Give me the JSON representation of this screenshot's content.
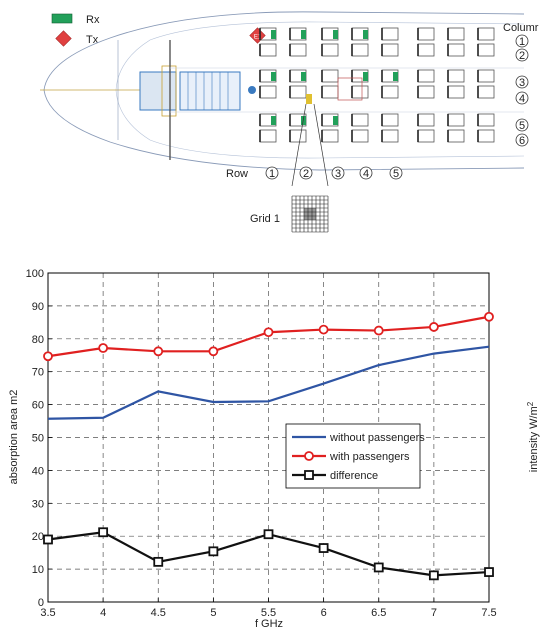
{
  "diagram": {
    "legend": [
      {
        "label": "Rx",
        "color": "#22a05a"
      },
      {
        "label": "Tx",
        "color": "#e04040"
      }
    ],
    "tx_marker": "E1",
    "column_header": "Columr",
    "columns": [
      "1",
      "2",
      "3",
      "4",
      "5",
      "6"
    ],
    "row_header": "Row",
    "rows": [
      "1",
      "2",
      "3",
      "4",
      "5"
    ],
    "grid_label": "Grid 1"
  },
  "chart_data": {
    "type": "line",
    "x": [
      3.5,
      4,
      4.5,
      5,
      5.5,
      6,
      6.5,
      7,
      7.5
    ],
    "xlabel": "f GHz",
    "ylabel": "absorption area  m2",
    "right_label": "intensity W/m",
    "right_label_sup": "2",
    "xlim": [
      3.5,
      7.5
    ],
    "ylim": [
      0,
      100
    ],
    "xticks": [
      "3.5",
      "4",
      "4.5",
      "5",
      "5.5",
      "6",
      "6.5",
      "7",
      "7.5"
    ],
    "yticks": [
      "0",
      "10",
      "20",
      "30",
      "40",
      "50",
      "60",
      "70",
      "80",
      "90",
      "100"
    ],
    "grid": true,
    "legend_position": "right-middle",
    "series": [
      {
        "name": "without passengers",
        "color": "#2f55a4",
        "marker": "none",
        "values": [
          55.7,
          56.0,
          64.0,
          60.8,
          61.0,
          66.4,
          72.0,
          75.5,
          77.6
        ]
      },
      {
        "name": "with passengers",
        "color": "#e02020",
        "marker": "circle",
        "values": [
          74.7,
          77.2,
          76.2,
          76.2,
          82.0,
          82.8,
          82.5,
          83.6,
          86.7
        ]
      },
      {
        "name": "difference",
        "color": "#111111",
        "marker": "square",
        "values": [
          19.0,
          21.2,
          12.2,
          15.4,
          20.6,
          16.4,
          10.5,
          8.1,
          9.1
        ]
      }
    ]
  }
}
